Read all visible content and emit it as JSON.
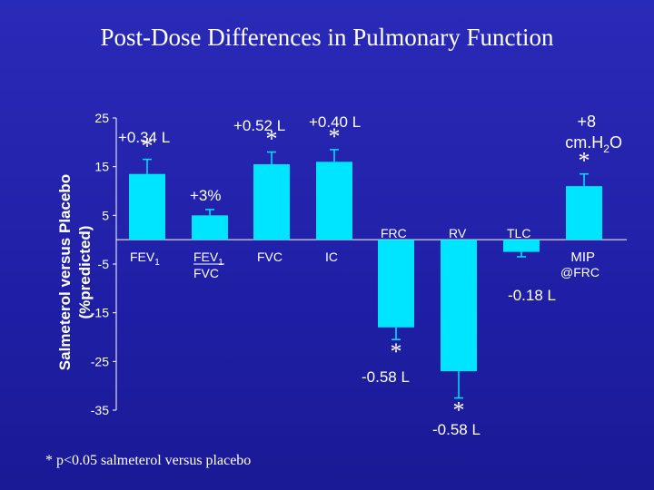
{
  "title": "Post-Dose Differences in Pulmonary Function",
  "footnote": "* p<0.05 salmeterol versus placebo",
  "colors": {
    "bar": "#00e5ff",
    "background": "#2222b0",
    "text": "#ffffff"
  },
  "chart_data": {
    "type": "bar",
    "ylabel_line1": "Salmeterol versus Placebo",
    "ylabel_line2": "(%predicted)",
    "ylim": [
      -35,
      25
    ],
    "yticks": [
      "25",
      "15",
      "5",
      "-5",
      "-15",
      "-25",
      "-35"
    ],
    "ytick_values": [
      25,
      15,
      5,
      -5,
      -15,
      -25,
      -35
    ],
    "grid": false,
    "bars": [
      {
        "category": "FEV",
        "sub": "1",
        "value": 13.5,
        "error": 3.0,
        "annotation": "+0.34 L",
        "significant": true
      },
      {
        "category": "FEV1/FVC",
        "sub": "",
        "value": 5.0,
        "error": 1.2,
        "annotation": "+3%",
        "significant": false
      },
      {
        "category": "FVC",
        "sub": "",
        "value": 15.5,
        "error": 2.5,
        "annotation": "+0.52 L",
        "significant": true
      },
      {
        "category": "IC",
        "sub": "",
        "value": 16.0,
        "error": 2.5,
        "annotation": "+0.40 L",
        "significant": true
      },
      {
        "category": "FRC",
        "sub": "",
        "value": -18.0,
        "error": 2.5,
        "annotation": "-0.58 L",
        "significant": true
      },
      {
        "category": "RV",
        "sub": "",
        "value": -27.0,
        "error": 5.5,
        "annotation": "-0.58 L",
        "significant": true
      },
      {
        "category": "TLC",
        "sub": "",
        "value": -2.5,
        "error": 1.0,
        "annotation": "-0.18 L",
        "significant": false
      },
      {
        "category": "MIP @FRC",
        "sub": "",
        "value": 11.0,
        "error": 2.5,
        "annotation": "+8 cm.H2O",
        "significant": true
      }
    ]
  }
}
